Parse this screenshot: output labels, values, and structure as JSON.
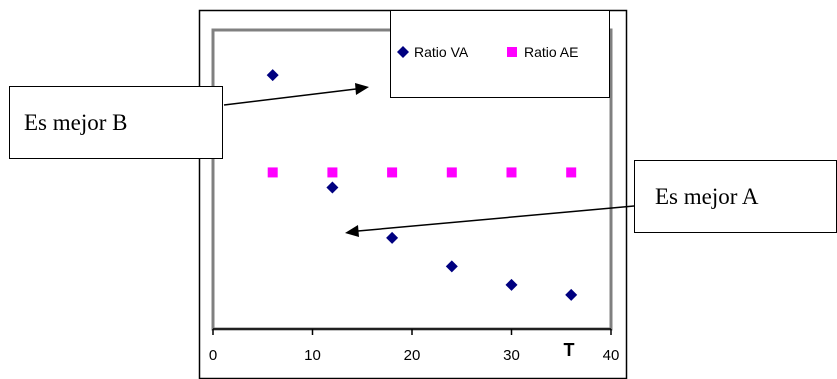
{
  "chart_data": {
    "type": "scatter",
    "xlabel": "T",
    "ylabel": "",
    "xlim": [
      0,
      40
    ],
    "x_ticks": [
      "0",
      "10",
      "20",
      "30",
      "40"
    ],
    "grid": false,
    "legend_position": "top-right",
    "series": [
      {
        "name": "Ratio VA",
        "marker": "diamond",
        "color": "#000080",
        "x": [
          6,
          12,
          18,
          24,
          30,
          36
        ],
        "y": [
          1.58,
          0.91,
          0.61,
          0.44,
          0.33,
          0.27
        ]
      },
      {
        "name": "Ratio AE",
        "marker": "square",
        "color": "#ff00ff",
        "x": [
          6,
          12,
          18,
          24,
          30,
          36
        ],
        "y": [
          1.0,
          1.0,
          1.0,
          1.0,
          1.0,
          1.0
        ]
      }
    ],
    "annotations": [
      {
        "text": "Es mejor B",
        "points_to": "above Ratio AE points"
      },
      {
        "text": "Es mejor A",
        "points_to": "below Ratio AE points"
      }
    ]
  },
  "colors": {
    "plot_border": "#808080",
    "frame": "#000000"
  }
}
